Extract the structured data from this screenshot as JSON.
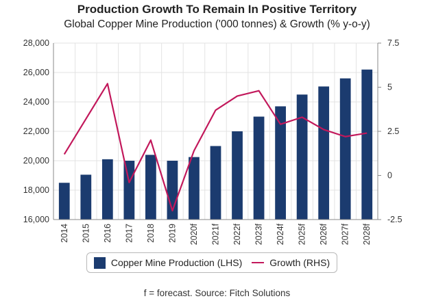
{
  "chart_data": {
    "type": "bar",
    "title": "Production Growth To Remain In Positive Territory",
    "subtitle": "Global Copper Mine Production ('000 tonnes) & Growth (% y-o-y)",
    "categories": [
      "2014",
      "2015",
      "2016",
      "2017",
      "2018",
      "2019",
      "2020f",
      "2021f",
      "2022f",
      "2023f",
      "2024f",
      "2025f",
      "2026f",
      "2027f",
      "2028f"
    ],
    "series": [
      {
        "name": "Copper Mine Production (LHS)",
        "type": "bar",
        "axis": "left",
        "values": [
          18500,
          19050,
          20100,
          20000,
          20400,
          20000,
          20250,
          21000,
          22000,
          23000,
          23700,
          24500,
          25050,
          25600,
          26200
        ]
      },
      {
        "name": "Growth (RHS)",
        "type": "line",
        "axis": "right",
        "values": [
          1.2,
          3.2,
          5.2,
          -0.4,
          2.0,
          -2.0,
          1.4,
          3.7,
          4.5,
          4.8,
          2.9,
          3.3,
          2.6,
          2.2,
          2.4
        ]
      }
    ],
    "ylim_left": [
      16000,
      28000
    ],
    "yticks_left": [
      "16,000",
      "18,000",
      "20,000",
      "22,000",
      "24,000",
      "26,000",
      "28,000"
    ],
    "ylim_right": [
      -2.5,
      7.5
    ],
    "yticks_right": [
      "-2.5",
      "0",
      "2.5",
      "5",
      "7.5"
    ],
    "grid": true,
    "legend_position": "bottom",
    "colors": {
      "bar": "#1b3b6f",
      "line": "#c2185b",
      "grid": "#e3e3e3",
      "axis": "#888888"
    }
  },
  "legend": {
    "bar_label": "Copper Mine Production (LHS)",
    "line_label": "Growth (RHS)"
  },
  "footnote": "f = forecast. Source: Fitch Solutions"
}
